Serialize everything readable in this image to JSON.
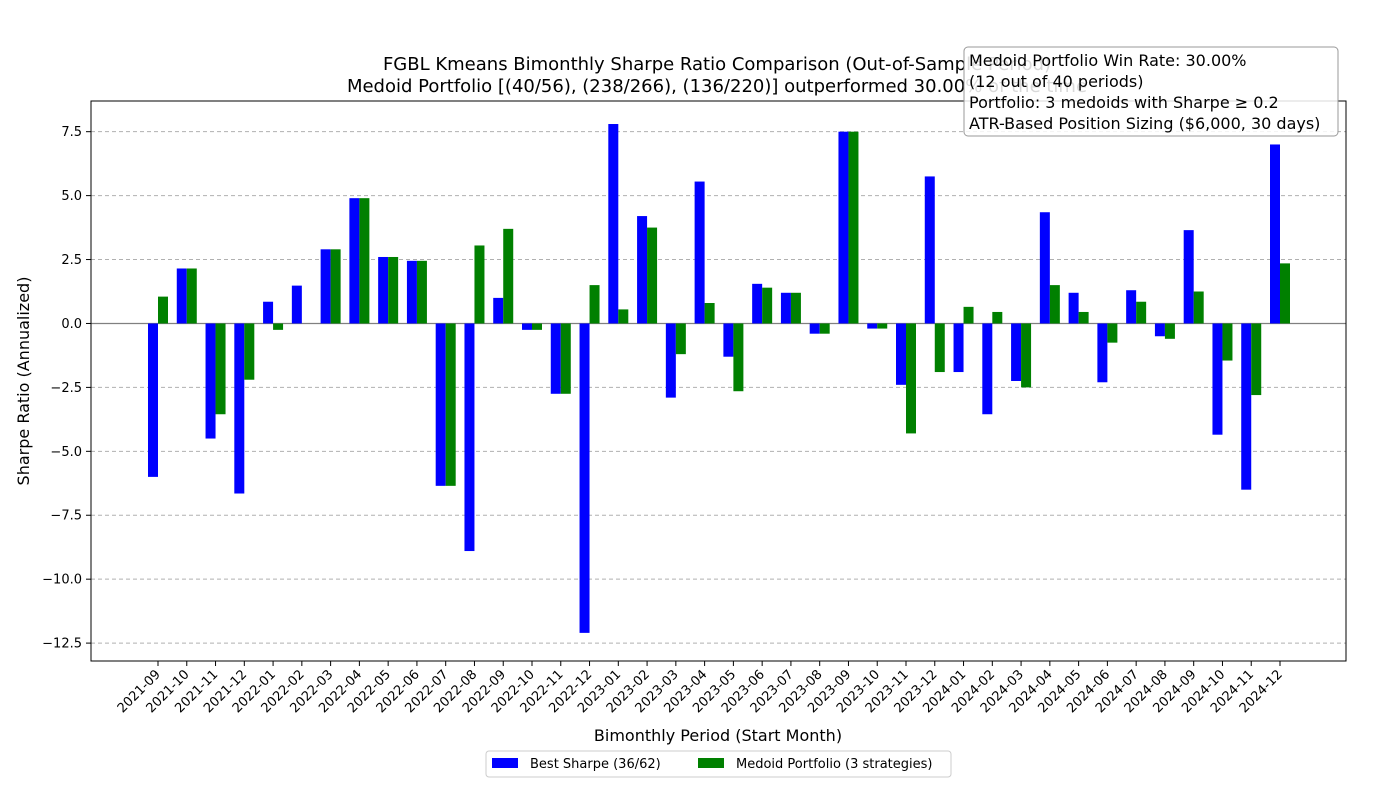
{
  "chart_data": {
    "type": "bar",
    "title": "FGBL Kmeans Bimonthly Sharpe Ratio Comparison (Out-of-Sample Period)",
    "subtitle": "Medoid Portfolio [(40/56), (238/266), (136/220)] outperformed 30.00% of the time",
    "xlabel": "Bimonthly Period (Start Month)",
    "ylabel": "Sharpe Ratio (Annualized)",
    "ylim": [
      -13.2,
      8.7
    ],
    "yticks": [
      7.5,
      5.0,
      2.5,
      0.0,
      -2.5,
      -5.0,
      -7.5,
      -10.0,
      -12.5
    ],
    "grid": "horizontal dashed",
    "legend_position": "bottom-center",
    "categories": [
      "2021-09",
      "2021-10",
      "2021-11",
      "2021-12",
      "2022-01",
      "2022-02",
      "2022-03",
      "2022-04",
      "2022-05",
      "2022-06",
      "2022-07",
      "2022-08",
      "2022-09",
      "2022-10",
      "2022-11",
      "2022-12",
      "2023-01",
      "2023-02",
      "2023-03",
      "2023-04",
      "2023-05",
      "2023-06",
      "2023-07",
      "2023-08",
      "2023-09",
      "2023-10",
      "2023-11",
      "2023-12",
      "2024-01",
      "2024-02",
      "2024-03",
      "2024-04",
      "2024-05",
      "2024-06",
      "2024-07",
      "2024-08",
      "2024-09",
      "2024-10",
      "2024-11",
      "2024-12"
    ],
    "series": [
      {
        "name": "Best Sharpe (36/62)",
        "color": "#0000ff",
        "values": [
          -6.0,
          2.15,
          -4.5,
          -6.65,
          0.85,
          1.48,
          2.9,
          4.9,
          2.6,
          2.45,
          -6.35,
          -8.9,
          1.0,
          -0.25,
          -2.75,
          -12.1,
          7.8,
          4.2,
          -2.9,
          5.55,
          -1.3,
          1.55,
          1.2,
          -0.4,
          7.5,
          -0.2,
          -2.4,
          5.75,
          -1.9,
          -3.55,
          -2.25,
          4.35,
          1.2,
          -2.3,
          1.3,
          -0.5,
          3.65,
          -4.35,
          -6.5,
          7.0
        ]
      },
      {
        "name": "Medoid Portfolio (3 strategies)",
        "color": "#008000",
        "values": [
          1.05,
          2.15,
          -3.55,
          -2.2,
          -0.25,
          0.0,
          2.9,
          4.9,
          2.6,
          2.45,
          -6.35,
          3.05,
          3.7,
          -0.25,
          -2.75,
          1.5,
          0.55,
          3.75,
          -1.2,
          0.8,
          -2.65,
          1.4,
          1.2,
          -0.4,
          7.5,
          -0.2,
          -4.3,
          -1.9,
          0.65,
          0.45,
          -2.5,
          1.5,
          0.45,
          -0.75,
          0.85,
          -0.6,
          1.25,
          -1.45,
          -2.8,
          2.35
        ]
      }
    ],
    "annotation_lines": [
      "Medoid Portfolio Win Rate: 30.00%",
      "(12 out of 40 periods)",
      "Portfolio: 3 medoids with Sharpe ≥ 0.2",
      "ATR-Based Position Sizing ($6,000, 30 days)"
    ]
  },
  "colors": {
    "best": "#0000ff",
    "medoid": "#008000",
    "grid": "#b0b0b0",
    "zero_line": "#808080"
  }
}
